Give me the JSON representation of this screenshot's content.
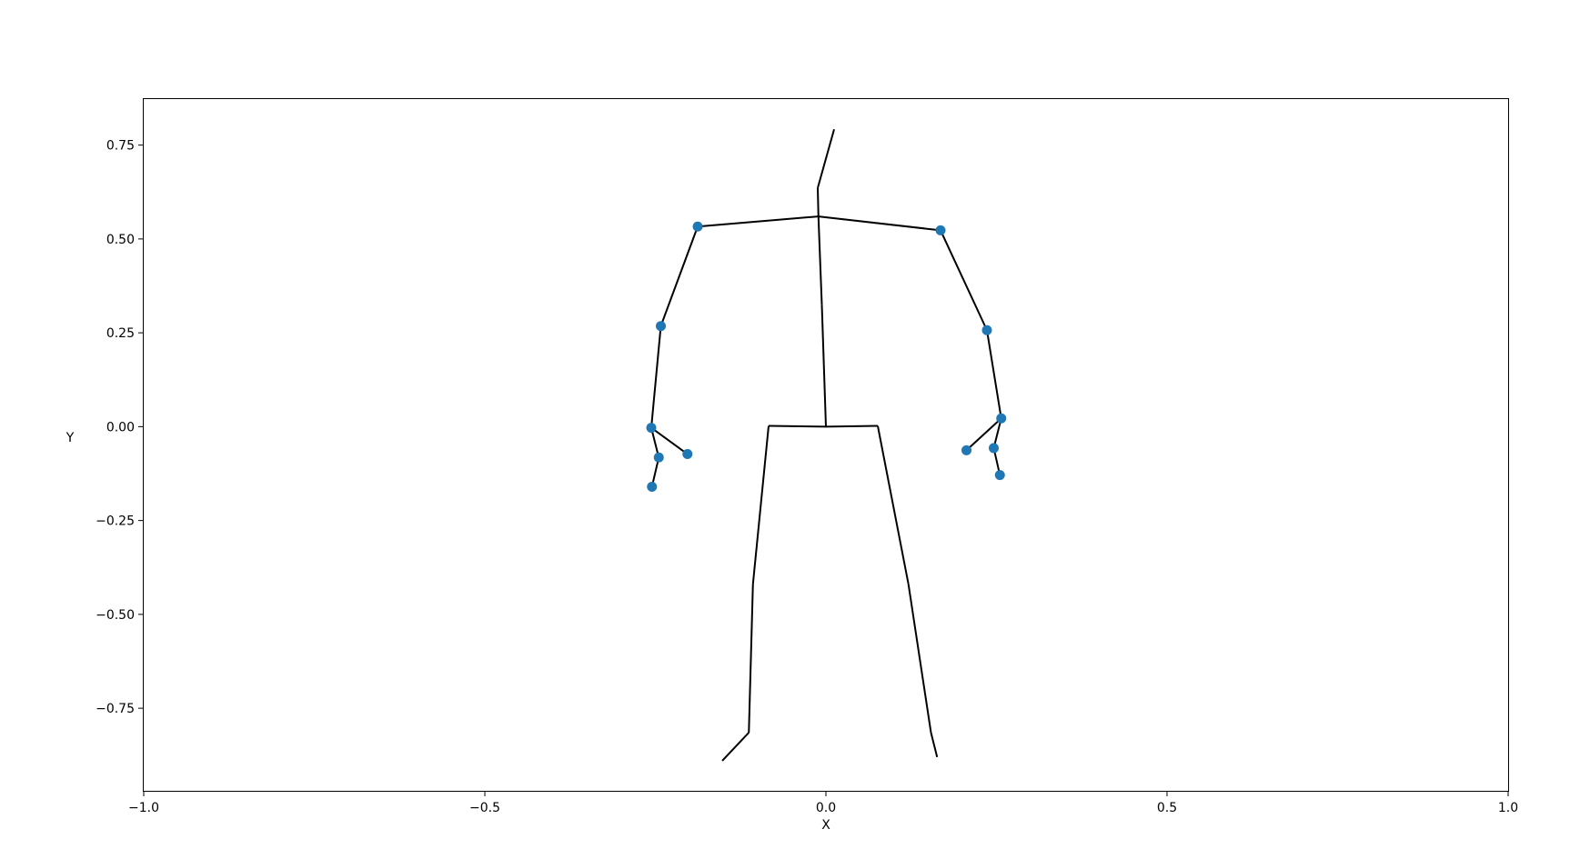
{
  "chart_data": {
    "type": "scatter",
    "title": "",
    "xlabel": "X",
    "ylabel": "Y",
    "xlim": [
      -1.0,
      1.0
    ],
    "ylim": [
      -0.97,
      0.875
    ],
    "xticks": [
      -1.0,
      -0.5,
      0.0,
      0.5,
      1.0
    ],
    "xtick_labels": [
      "−1.0",
      "−0.5",
      "0.0",
      "0.5",
      "1.0"
    ],
    "yticks": [
      0.75,
      0.5,
      0.25,
      0.0,
      -0.25,
      -0.5,
      -0.75
    ],
    "ytick_labels": [
      "0.75",
      "0.50",
      "0.25",
      "0.00",
      "−0.25",
      "−0.50",
      "−0.75"
    ],
    "grid": false,
    "legend": "none",
    "colors": {
      "marker": "#1f77b4",
      "line": "#000000"
    },
    "series": [
      {
        "kind": "skeleton-lines",
        "segments": [
          [
            [
              -0.012,
              0.636
            ],
            [
              0.012,
              0.792
            ]
          ],
          [
            [
              -0.012,
              0.636
            ],
            [
              -0.011,
              0.56
            ]
          ],
          [
            [
              -0.011,
              0.56
            ],
            [
              -0.188,
              0.533
            ]
          ],
          [
            [
              -0.011,
              0.56
            ],
            [
              0.168,
              0.523
            ]
          ],
          [
            [
              -0.011,
              0.56
            ],
            [
              -0.006,
              0.325
            ]
          ],
          [
            [
              -0.006,
              0.325
            ],
            [
              0.0,
              0.0
            ]
          ],
          [
            [
              -0.188,
              0.533
            ],
            [
              -0.242,
              0.268
            ]
          ],
          [
            [
              -0.242,
              0.268
            ],
            [
              -0.256,
              -0.003
            ]
          ],
          [
            [
              -0.256,
              -0.003
            ],
            [
              -0.245,
              -0.082
            ]
          ],
          [
            [
              -0.245,
              -0.082
            ],
            [
              -0.255,
              -0.16
            ]
          ],
          [
            [
              -0.256,
              -0.003
            ],
            [
              -0.203,
              -0.073
            ]
          ],
          [
            [
              0.168,
              0.523
            ],
            [
              0.236,
              0.257
            ]
          ],
          [
            [
              0.236,
              0.257
            ],
            [
              0.257,
              0.022
            ]
          ],
          [
            [
              0.257,
              0.022
            ],
            [
              0.206,
              -0.063
            ]
          ],
          [
            [
              0.257,
              0.022
            ],
            [
              0.246,
              -0.057
            ]
          ],
          [
            [
              0.246,
              -0.057
            ],
            [
              0.255,
              -0.129
            ]
          ],
          [
            [
              0.0,
              0.0
            ],
            [
              -0.084,
              0.002
            ]
          ],
          [
            [
              -0.084,
              0.002
            ],
            [
              -0.107,
              -0.42
            ]
          ],
          [
            [
              -0.107,
              -0.42
            ],
            [
              -0.113,
              -0.815
            ]
          ],
          [
            [
              -0.113,
              -0.815
            ],
            [
              -0.152,
              -0.89
            ]
          ],
          [
            [
              0.0,
              0.0
            ],
            [
              0.076,
              0.002
            ]
          ],
          [
            [
              0.076,
              0.002
            ],
            [
              0.121,
              -0.42
            ]
          ],
          [
            [
              0.121,
              -0.42
            ],
            [
              0.154,
              -0.815
            ]
          ],
          [
            [
              0.154,
              -0.815
            ],
            [
              0.163,
              -0.88
            ]
          ]
        ]
      },
      {
        "kind": "points",
        "x": [
          -0.188,
          0.168,
          -0.242,
          0.236,
          -0.256,
          0.257,
          -0.245,
          -0.255,
          -0.203,
          0.206,
          0.246,
          0.255
        ],
        "y": [
          0.533,
          0.523,
          0.268,
          0.257,
          -0.003,
          0.022,
          -0.082,
          -0.16,
          -0.073,
          -0.063,
          -0.057,
          -0.129
        ]
      }
    ]
  }
}
